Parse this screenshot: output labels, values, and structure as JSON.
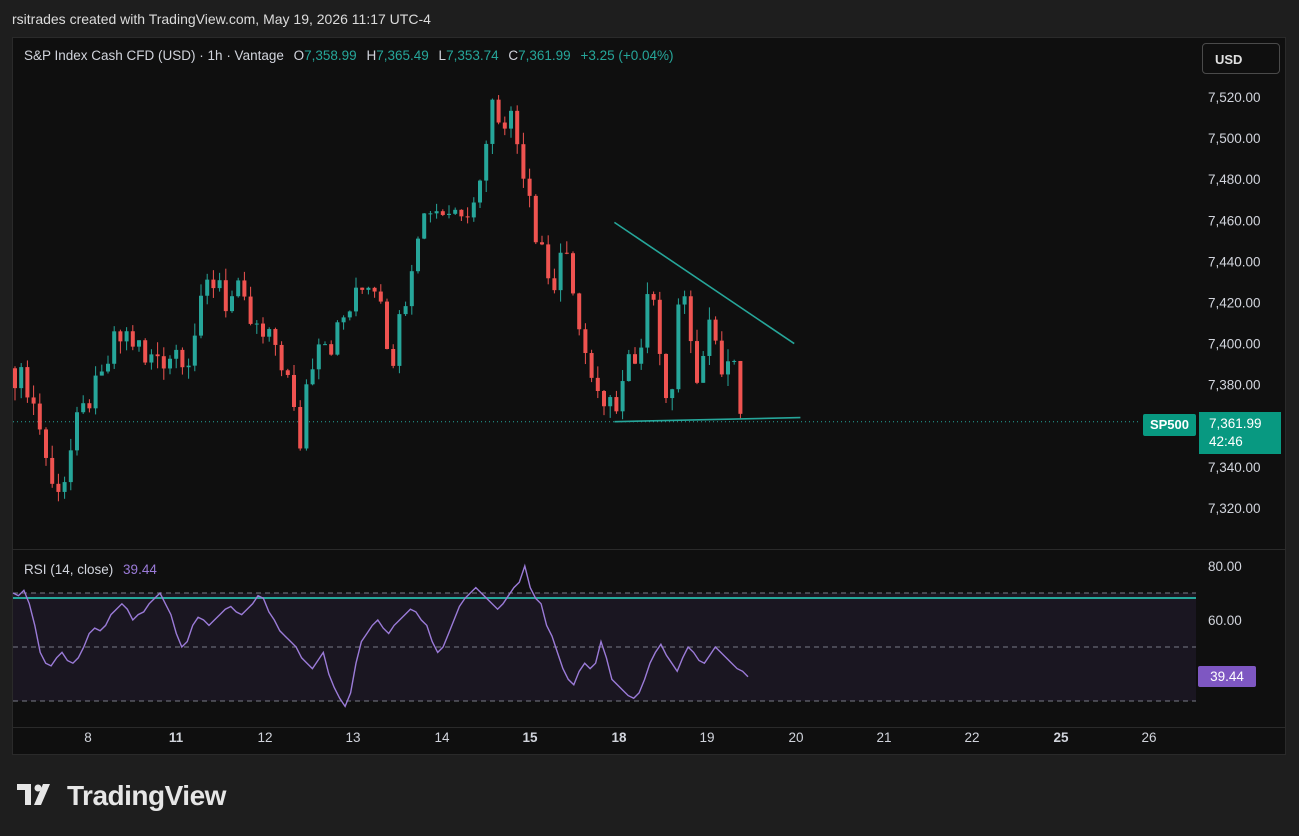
{
  "header": {
    "attribution": "rsitrades created with TradingView.com, May 19, 2026 11:17 UTC-4"
  },
  "legend": {
    "symbol": "S&P Index Cash CFD (USD) · 1h · Vantage",
    "o_label": "O",
    "o_value": "7,358.99",
    "h_label": "H",
    "h_value": "7,365.49",
    "l_label": "L",
    "l_value": "7,353.74",
    "c_label": "C",
    "c_value": "7,361.99",
    "change": "+3.25 (+0.04%)"
  },
  "rsi_legend": {
    "name": "RSI (14, close)",
    "value": "39.44"
  },
  "currency_button": "USD",
  "price_tag": {
    "symbol": "SP500",
    "price": "7,361.99",
    "countdown": "42:46"
  },
  "rsi_tag": "39.44",
  "brand": "TradingView",
  "colors": {
    "up": "#26a69a",
    "down": "#ef5350",
    "rsi": "#9b7bd8",
    "trendline": "#26a69a",
    "background": "#0f0f0f"
  },
  "chart_data": [
    {
      "type": "candlestick",
      "price_ticks": [
        "7,520.00",
        "7,500.00",
        "7,480.00",
        "7,460.00",
        "7,440.00",
        "7,420.00",
        "7,400.00",
        "7,380.00",
        "7,340.00",
        "7,320.00"
      ],
      "price_tick_values": [
        7520,
        7500,
        7480,
        7460,
        7440,
        7420,
        7400,
        7380,
        7340,
        7320
      ],
      "ylim": [
        7310,
        7535
      ],
      "x_ticks": [
        "8",
        "11",
        "12",
        "13",
        "14",
        "15",
        "18",
        "19",
        "20",
        "21",
        "22",
        "25",
        "26"
      ],
      "x_ticks_bold": [
        "11",
        "15",
        "18",
        "25"
      ],
      "last_price": 7361.99,
      "approx_path": [
        [
          0,
          7388
        ],
        [
          3,
          7380
        ],
        [
          5,
          7360
        ],
        [
          7,
          7330
        ],
        [
          9,
          7335
        ],
        [
          11,
          7360
        ],
        [
          13,
          7373
        ],
        [
          15,
          7382
        ],
        [
          17,
          7400
        ],
        [
          19,
          7404
        ],
        [
          21,
          7398
        ],
        [
          22,
          7390
        ],
        [
          24,
          7395
        ],
        [
          25,
          7393
        ],
        [
          27,
          7397
        ],
        [
          29,
          7394
        ],
        [
          30,
          7405
        ],
        [
          32,
          7428
        ],
        [
          34,
          7432
        ],
        [
          35,
          7420
        ],
        [
          37,
          7424
        ],
        [
          39,
          7410
        ],
        [
          41,
          7402
        ],
        [
          43,
          7400
        ],
        [
          45,
          7382
        ],
        [
          46,
          7365
        ],
        [
          47,
          7352
        ],
        [
          48,
          7380
        ],
        [
          50,
          7405
        ],
        [
          52,
          7400
        ],
        [
          54,
          7412
        ],
        [
          56,
          7422
        ],
        [
          58,
          7431
        ],
        [
          60,
          7425
        ],
        [
          61,
          7402
        ],
        [
          62,
          7395
        ],
        [
          64,
          7425
        ],
        [
          66,
          7457
        ],
        [
          68,
          7467
        ],
        [
          70,
          7465
        ],
        [
          72,
          7465
        ],
        [
          74,
          7468
        ],
        [
          76,
          7478
        ],
        [
          77,
          7502
        ],
        [
          78,
          7516
        ],
        [
          79,
          7512
        ],
        [
          81,
          7510
        ],
        [
          82,
          7498
        ],
        [
          83,
          7486
        ],
        [
          84,
          7475
        ],
        [
          85,
          7455
        ],
        [
          86,
          7450
        ],
        [
          87,
          7432
        ],
        [
          88,
          7428
        ],
        [
          89,
          7445
        ],
        [
          90,
          7438
        ],
        [
          91,
          7420
        ],
        [
          92,
          7412
        ],
        [
          93,
          7395
        ],
        [
          94,
          7380
        ],
        [
          96,
          7366
        ],
        [
          97,
          7368
        ],
        [
          98,
          7372
        ],
        [
          99,
          7388
        ],
        [
          100,
          7395
        ],
        [
          102,
          7392
        ],
        [
          103,
          7430
        ],
        [
          104,
          7426
        ],
        [
          105,
          7395
        ],
        [
          106,
          7368
        ],
        [
          107,
          7380
        ],
        [
          108,
          7418
        ],
        [
          109,
          7420
        ],
        [
          110,
          7395
        ],
        [
          111,
          7385
        ],
        [
          112,
          7392
        ],
        [
          113,
          7418
        ],
        [
          114,
          7408
        ],
        [
          115,
          7385
        ],
        [
          116,
          7392
        ],
        [
          117,
          7392
        ],
        [
          118,
          7360
        ]
      ],
      "trendlines": [
        {
          "name": "descending-resistance",
          "from": [
            97,
            7459
          ],
          "to": [
            126,
            7400
          ]
        },
        {
          "name": "horizontal-support",
          "from": [
            97,
            7362
          ],
          "to": [
            127,
            7364
          ]
        }
      ],
      "x_note": "x in hourly bars; day separators at tick positions"
    },
    {
      "type": "line",
      "name": "RSI (14, close)",
      "y_ticks": [
        "80.00",
        "60.00"
      ],
      "y_tick_values": [
        80,
        60
      ],
      "bands": [
        70,
        50,
        30
      ],
      "ylim": [
        25,
        82
      ],
      "last": 39.44,
      "values": [
        70,
        69,
        71,
        66,
        58,
        48,
        44,
        43,
        46,
        48,
        45,
        44,
        46,
        50,
        55,
        57,
        56,
        58,
        62,
        64,
        66,
        64,
        60,
        62,
        63,
        66,
        68,
        70,
        66,
        62,
        55,
        50,
        52,
        58,
        61,
        60,
        58,
        60,
        62,
        64,
        65,
        63,
        62,
        64,
        66,
        69,
        68,
        63,
        60,
        56,
        54,
        52,
        50,
        46,
        44,
        42,
        45,
        48,
        40,
        35,
        31,
        28,
        33,
        44,
        52,
        55,
        58,
        60,
        57,
        55,
        58,
        60,
        62,
        64,
        63,
        60,
        58,
        52,
        48,
        50,
        55,
        60,
        65,
        68,
        70,
        72,
        70,
        68,
        66,
        64,
        66,
        69,
        72,
        74,
        80,
        72,
        68,
        66,
        58,
        54,
        48,
        42,
        38,
        36,
        41,
        44,
        42,
        44,
        52,
        46,
        38,
        36,
        34,
        32,
        31,
        33,
        38,
        44,
        48,
        51,
        47,
        44,
        41,
        46,
        50,
        48,
        45,
        44,
        47,
        50,
        48,
        46,
        44,
        42,
        41,
        39
      ]
    }
  ]
}
